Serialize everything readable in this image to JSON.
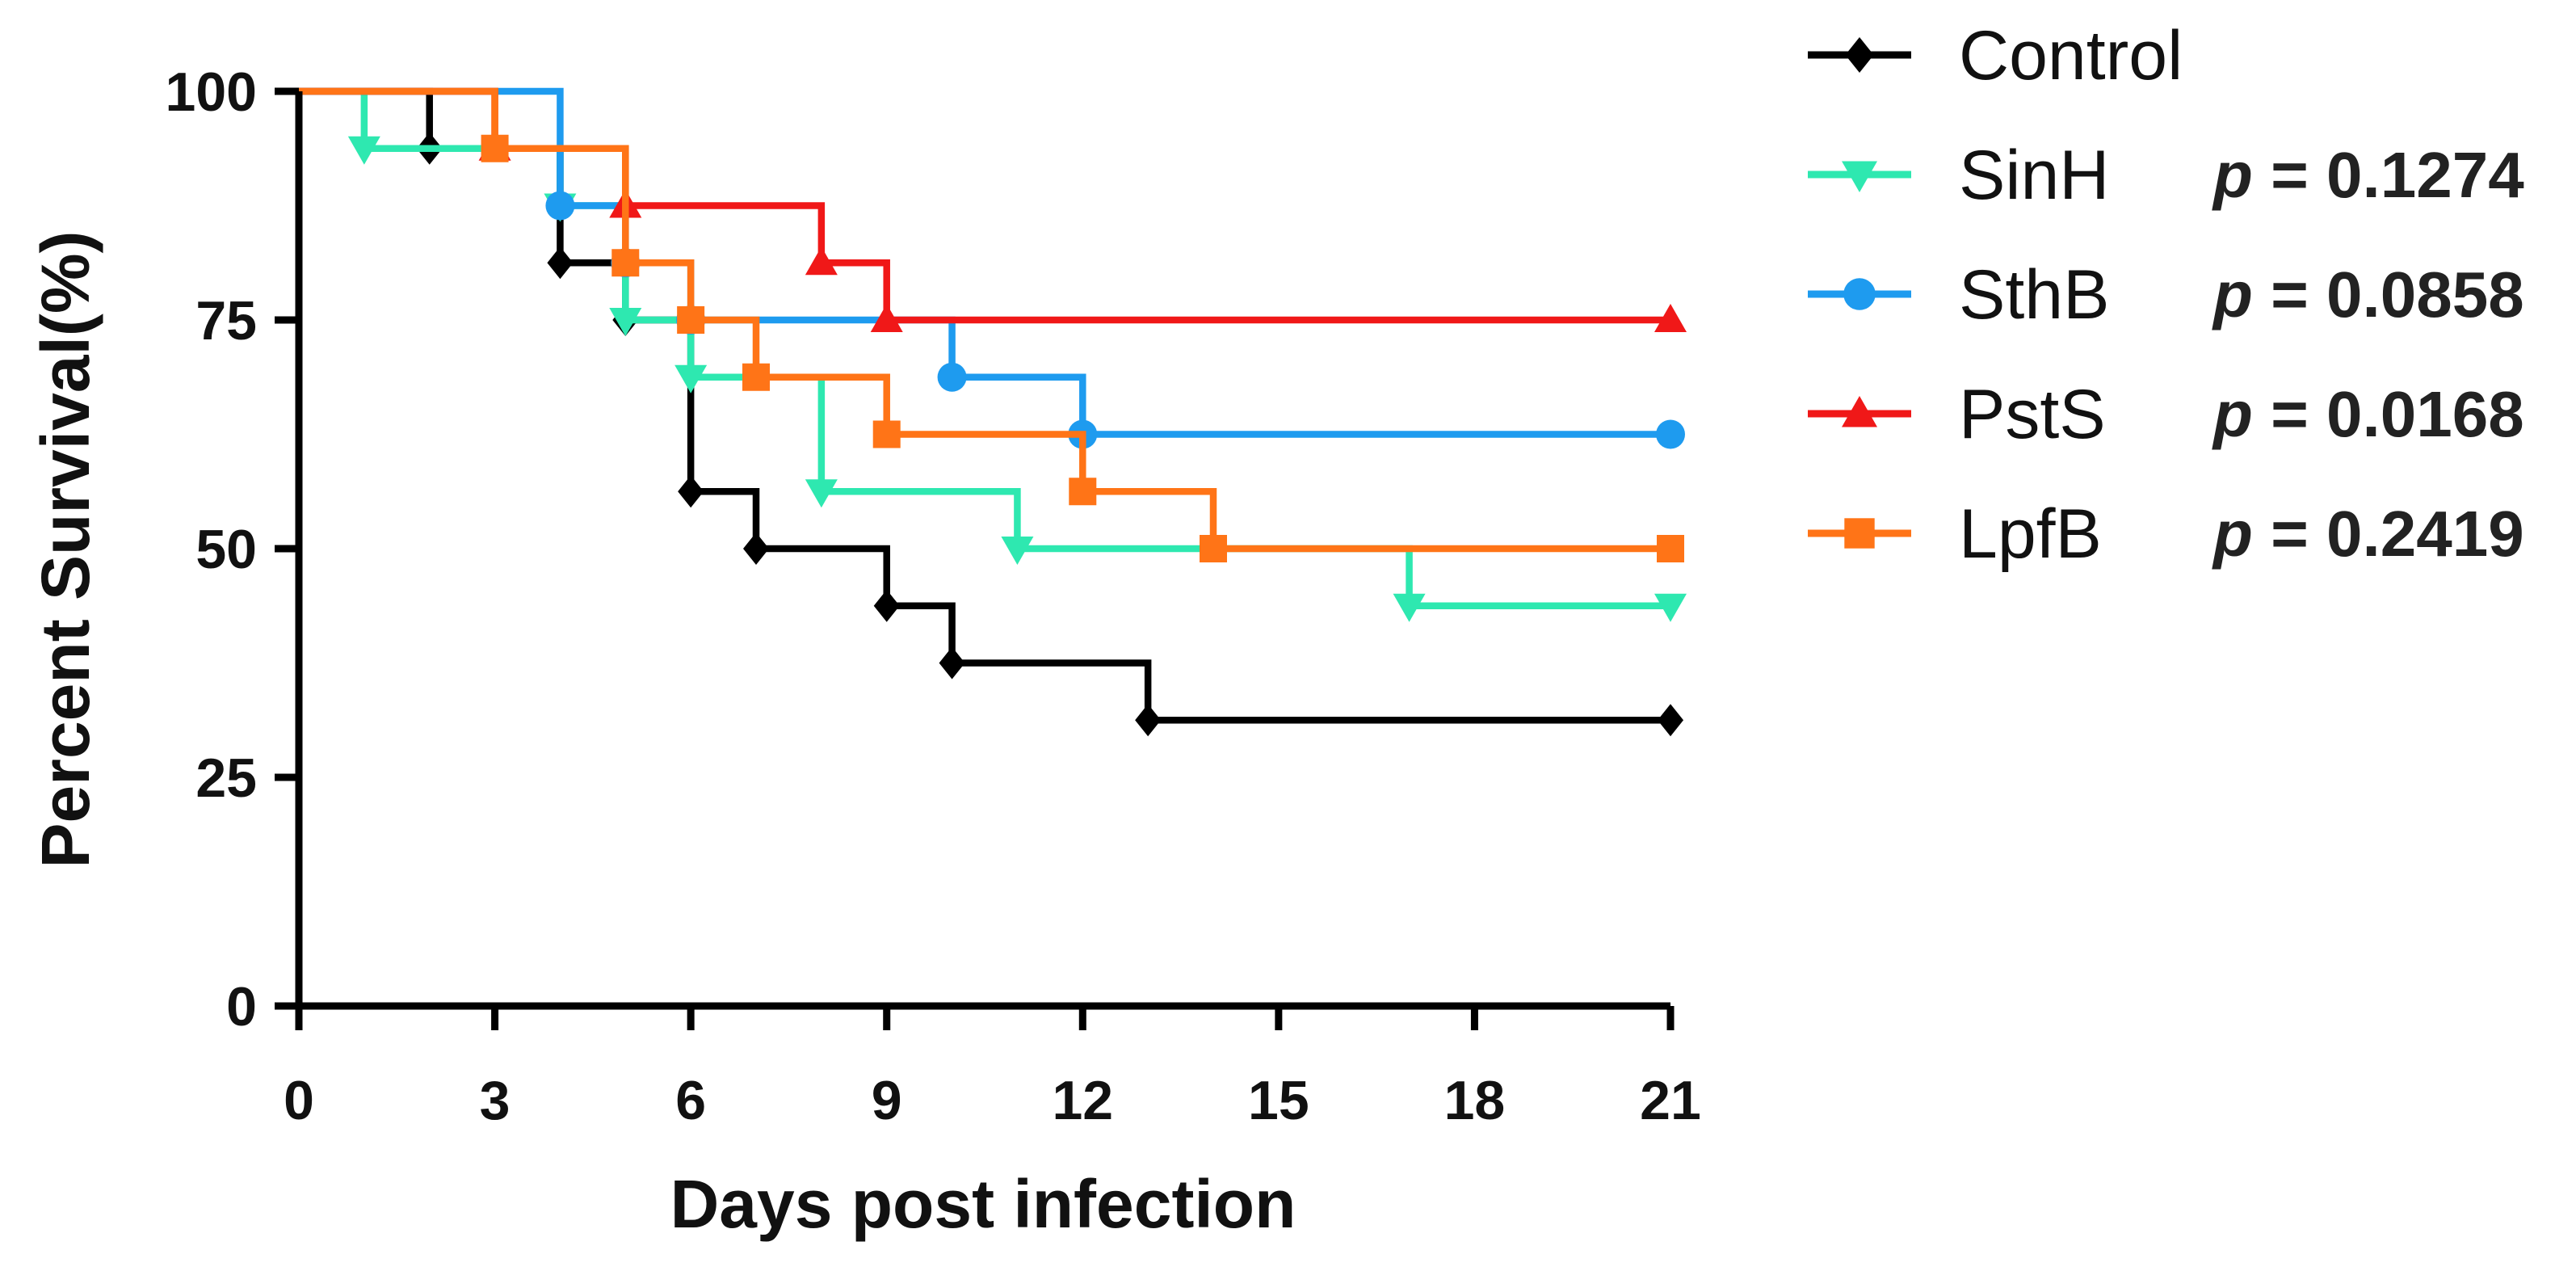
{
  "chart_data": {
    "type": "line",
    "subtype": "kaplan-meier step",
    "title": "",
    "xlabel": "Days post infection",
    "ylabel": "Percent Survival(%)",
    "xlim": [
      0,
      21
    ],
    "ylim": [
      0,
      100
    ],
    "xticks": [
      "0",
      "3",
      "6",
      "9",
      "12",
      "15",
      "18",
      "21"
    ],
    "yticks": [
      "0",
      "25",
      "50",
      "75",
      "100"
    ],
    "grid": false,
    "legend_position": "right",
    "p_prefix": "p",
    "series": [
      {
        "name": "Control",
        "color": "#000000",
        "marker": "diamond",
        "p_value": "",
        "steps": [
          [
            0,
            100
          ],
          [
            2,
            93.75
          ],
          [
            4,
            81.25
          ],
          [
            5,
            75
          ],
          [
            6,
            56.25
          ],
          [
            7,
            50
          ],
          [
            9,
            43.75
          ],
          [
            10,
            37.5
          ],
          [
            13,
            31.25
          ]
        ],
        "end_x": 21
      },
      {
        "name": "SinH",
        "color": "#2EE8B0",
        "marker": "triangle-down",
        "p_value": "= 0.1274",
        "steps": [
          [
            0,
            100
          ],
          [
            1,
            93.75
          ],
          [
            4,
            87.5
          ],
          [
            5,
            75
          ],
          [
            6,
            68.75
          ],
          [
            8,
            56.25
          ],
          [
            11,
            50
          ],
          [
            17,
            43.75
          ]
        ],
        "end_x": 21
      },
      {
        "name": "SthB",
        "color": "#1E9BEF",
        "marker": "circle",
        "p_value": "= 0.0858",
        "steps": [
          [
            0,
            100
          ],
          [
            4,
            87.5
          ],
          [
            5,
            81.25
          ],
          [
            6,
            75
          ],
          [
            10,
            68.75
          ],
          [
            12,
            62.5
          ]
        ],
        "end_x": 21
      },
      {
        "name": "PstS",
        "color": "#F01818",
        "marker": "triangle-up",
        "p_value": "= 0.0168",
        "steps": [
          [
            0,
            100
          ],
          [
            3,
            93.75
          ],
          [
            5,
            87.5
          ],
          [
            8,
            81.25
          ],
          [
            9,
            75
          ]
        ],
        "end_x": 21
      },
      {
        "name": "LpfB",
        "color": "#FF7417",
        "marker": "square",
        "p_value": "= 0.2419",
        "steps": [
          [
            0,
            100
          ],
          [
            3,
            93.75
          ],
          [
            5,
            81.25
          ],
          [
            6,
            75
          ],
          [
            7,
            68.75
          ],
          [
            9,
            62.5
          ],
          [
            12,
            56.25
          ],
          [
            14,
            50
          ]
        ],
        "end_x": 21
      }
    ]
  }
}
